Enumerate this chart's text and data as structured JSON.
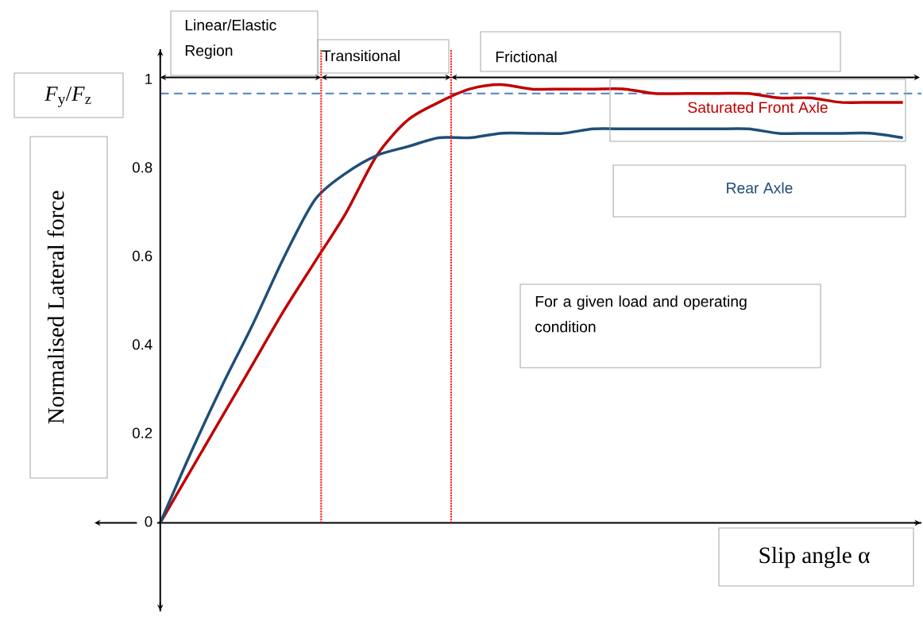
{
  "chart_data": {
    "type": "line",
    "ylabel": "Normalised Lateral force",
    "xlabel": "Slip angle α",
    "subtitle": "*F*$_{y}$/*F*$_{z}$",
    "categories": [
      null,
      null,
      null,
      null,
      null,
      null,
      null,
      null,
      null,
      null,
      null,
      null,
      null,
      null,
      null,
      null,
      null,
      null,
      null,
      null,
      null,
      null,
      null,
      null,
      null
    ],
    "series": [
      {
        "name": "Saturated Front Axle",
        "color": "#c00000",
        "values": [
          0,
          0.12,
          0.24,
          0.36,
          0.48,
          0.59,
          0.7,
          0.83,
          0.91,
          0.95,
          0.98,
          0.99,
          0.98,
          0.98,
          0.98,
          0.98,
          0.97,
          0.97,
          0.97,
          0.97,
          0.96,
          0.96,
          0.95,
          0.95,
          0.95
        ]
      },
      {
        "name": "Rear Axle",
        "color": "#1f4e79",
        "values": [
          0,
          0.16,
          0.31,
          0.45,
          0.6,
          0.73,
          0.79,
          0.83,
          0.85,
          0.87,
          0.87,
          0.88,
          0.88,
          0.88,
          0.89,
          0.89,
          0.89,
          0.89,
          0.89,
          0.89,
          0.88,
          0.88,
          0.88,
          0.88,
          0.87
        ]
      }
    ],
    "ylim": [
      -0.2,
      1.07
    ],
    "yticks": [
      0,
      0.2,
      0.4,
      0.6,
      0.8,
      1
    ],
    "ref_lines": [
      {
        "axis": "y",
        "value": 0,
        "color": "#000000",
        "line_style": "solid"
      },
      {
        "axis": "y",
        "value": 0.97,
        "color": "#4f81bd",
        "line_style": "dashed"
      }
    ],
    "annotations": [
      "Linear/Elastic Region",
      "Transitional",
      "Frictional",
      "For a given load and operating condition"
    ],
    "legend": false,
    "marker": "none",
    "line_style": "solid"
  }
}
